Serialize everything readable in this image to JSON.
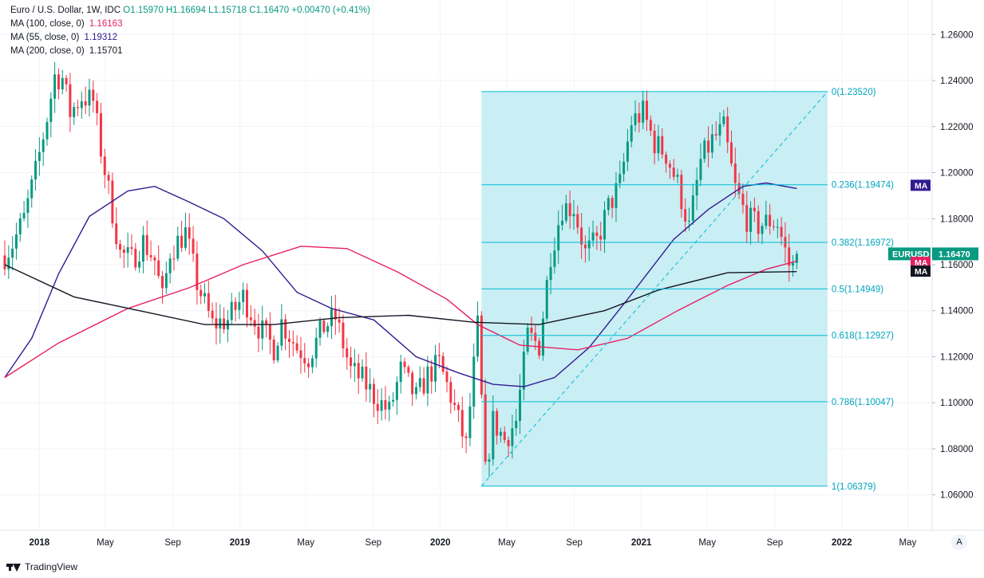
{
  "legend": {
    "title": "Euro / U.S. Dollar, 1W, IDC",
    "ohlc": {
      "o_label": "O",
      "o": "1.15970",
      "h_label": "H",
      "h": "1.16694",
      "l_label": "L",
      "l": "1.15718",
      "c_label": "C",
      "c": "1.16470",
      "change": "+0.00470 (+0.41%)"
    },
    "ma100": {
      "label": "MA (100, close, 0)",
      "value": "1.16163",
      "color": "#e91e63"
    },
    "ma55": {
      "label": "MA (55, close, 0)",
      "value": "1.19312",
      "color": "#311b92"
    },
    "ma200": {
      "label": "MA (200, close, 0)",
      "value": "1.15701",
      "color": "#131722"
    }
  },
  "footer": {
    "brand": "TradingView",
    "auto_button": "A"
  },
  "colors": {
    "up": "#089981",
    "down": "#f23645",
    "fib_line": "#00bcd4",
    "fib_fill": "#c9eef4",
    "fib_text": "#00a5bd",
    "grid": "#f0f3fa"
  },
  "chart_data": {
    "type": "candlestick",
    "symbol": "EURUSD",
    "timeframe": "1W",
    "ylim": [
      1.045,
      1.275
    ],
    "xlim": [
      "2017-10-30",
      "2022-06-13"
    ],
    "y_ticks": [
      "1.06000",
      "1.08000",
      "1.10000",
      "1.12000",
      "1.14000",
      "1.16000",
      "1.18000",
      "1.20000",
      "1.22000",
      "1.24000",
      "1.26000"
    ],
    "x_ticks": [
      {
        "label": "2018",
        "date": "2018-01-01",
        "bold": true
      },
      {
        "label": "May",
        "date": "2018-05-01",
        "bold": false
      },
      {
        "label": "Sep",
        "date": "2018-09-01",
        "bold": false
      },
      {
        "label": "2019",
        "date": "2019-01-01",
        "bold": true
      },
      {
        "label": "May",
        "date": "2019-05-01",
        "bold": false
      },
      {
        "label": "Sep",
        "date": "2019-09-01",
        "bold": false
      },
      {
        "label": "2020",
        "date": "2020-01-01",
        "bold": true
      },
      {
        "label": "May",
        "date": "2020-05-01",
        "bold": false
      },
      {
        "label": "Sep",
        "date": "2020-09-01",
        "bold": false
      },
      {
        "label": "2021",
        "date": "2021-01-01",
        "bold": true
      },
      {
        "label": "May",
        "date": "2021-05-01",
        "bold": false
      },
      {
        "label": "Sep",
        "date": "2021-09-01",
        "bold": false
      },
      {
        "label": "2022",
        "date": "2022-01-01",
        "bold": true
      },
      {
        "label": "May",
        "date": "2022-05-01",
        "bold": false
      }
    ],
    "price_path": [
      [
        "2017-10-30",
        1.164
      ],
      [
        "2017-11-13",
        1.169
      ],
      [
        "2017-12-04",
        1.18
      ],
      [
        "2017-12-25",
        1.2
      ],
      [
        "2018-01-15",
        1.224
      ],
      [
        "2018-01-29",
        1.242
      ],
      [
        "2018-02-12",
        1.241
      ],
      [
        "2018-02-26",
        1.226
      ],
      [
        "2018-03-19",
        1.233
      ],
      [
        "2018-04-09",
        1.231
      ],
      [
        "2018-04-23",
        1.21
      ],
      [
        "2018-05-07",
        1.192
      ],
      [
        "2018-05-28",
        1.165
      ],
      [
        "2018-06-18",
        1.162
      ],
      [
        "2018-07-09",
        1.17
      ],
      [
        "2018-07-30",
        1.162
      ],
      [
        "2018-08-13",
        1.145
      ],
      [
        "2018-08-27",
        1.166
      ],
      [
        "2018-09-24",
        1.174
      ],
      [
        "2018-10-15",
        1.152
      ],
      [
        "2018-11-12",
        1.134
      ],
      [
        "2018-12-10",
        1.136
      ],
      [
        "2019-01-07",
        1.146
      ],
      [
        "2019-02-04",
        1.133
      ],
      [
        "2019-03-04",
        1.124
      ],
      [
        "2019-03-18",
        1.135
      ],
      [
        "2019-04-15",
        1.124
      ],
      [
        "2019-05-06",
        1.12
      ],
      [
        "2019-06-03",
        1.133
      ],
      [
        "2019-06-24",
        1.137
      ],
      [
        "2019-07-22",
        1.114
      ],
      [
        "2019-08-12",
        1.11
      ],
      [
        "2019-09-02",
        1.103
      ],
      [
        "2019-09-30",
        1.096
      ],
      [
        "2019-10-21",
        1.114
      ],
      [
        "2019-11-18",
        1.102
      ],
      [
        "2019-12-09",
        1.112
      ],
      [
        "2019-12-30",
        1.117
      ],
      [
        "2020-01-20",
        1.103
      ],
      [
        "2020-02-17",
        1.081
      ],
      [
        "2020-03-09",
        1.133
      ],
      [
        "2020-03-23",
        1.069
      ],
      [
        "2020-04-06",
        1.092
      ],
      [
        "2020-04-27",
        1.084
      ],
      [
        "2020-05-18",
        1.092
      ],
      [
        "2020-06-08",
        1.129
      ],
      [
        "2020-06-29",
        1.125
      ],
      [
        "2020-07-20",
        1.165
      ],
      [
        "2020-08-10",
        1.185
      ],
      [
        "2020-08-31",
        1.185
      ],
      [
        "2020-09-21",
        1.165
      ],
      [
        "2020-10-12",
        1.17
      ],
      [
        "2020-11-02",
        1.185
      ],
      [
        "2020-11-23",
        1.195
      ],
      [
        "2020-12-14",
        1.222
      ],
      [
        "2021-01-04",
        1.226
      ],
      [
        "2021-01-25",
        1.213
      ],
      [
        "2021-02-15",
        1.208
      ],
      [
        "2021-03-08",
        1.195
      ],
      [
        "2021-03-29",
        1.176
      ],
      [
        "2021-04-19",
        1.205
      ],
      [
        "2021-05-10",
        1.214
      ],
      [
        "2021-05-31",
        1.219
      ],
      [
        "2021-06-21",
        1.193
      ],
      [
        "2021-07-12",
        1.18
      ],
      [
        "2021-08-02",
        1.177
      ],
      [
        "2021-08-23",
        1.179
      ],
      [
        "2021-09-06",
        1.178
      ],
      [
        "2021-09-27",
        1.16
      ],
      [
        "2021-10-04",
        1.159
      ],
      [
        "2021-10-11",
        1.1647
      ]
    ],
    "ma_series": [
      {
        "name": "MA (55, close, 0)",
        "color": "#311b92",
        "points": [
          [
            "2017-10-30",
            1.111
          ],
          [
            "2017-12-18",
            1.128
          ],
          [
            "2018-02-05",
            1.156
          ],
          [
            "2018-04-02",
            1.181
          ],
          [
            "2018-06-11",
            1.192
          ],
          [
            "2018-07-30",
            1.194
          ],
          [
            "2018-09-24",
            1.188
          ],
          [
            "2018-12-03",
            1.18
          ],
          [
            "2019-02-11",
            1.166
          ],
          [
            "2019-04-15",
            1.148
          ],
          [
            "2019-06-17",
            1.141
          ],
          [
            "2019-09-02",
            1.136
          ],
          [
            "2019-11-18",
            1.12
          ],
          [
            "2020-02-03",
            1.113
          ],
          [
            "2020-04-06",
            1.108
          ],
          [
            "2020-06-01",
            1.107
          ],
          [
            "2020-07-27",
            1.111
          ],
          [
            "2020-09-28",
            1.124
          ],
          [
            "2020-12-07",
            1.145
          ],
          [
            "2021-03-01",
            1.171
          ],
          [
            "2021-05-03",
            1.184
          ],
          [
            "2021-07-05",
            1.194
          ],
          [
            "2021-08-16",
            1.1955
          ],
          [
            "2021-10-11",
            1.1931
          ]
        ]
      },
      {
        "name": "MA (100, close, 0)",
        "color": "#e91e63",
        "points": [
          [
            "2017-10-30",
            1.111
          ],
          [
            "2018-02-05",
            1.126
          ],
          [
            "2018-06-11",
            1.141
          ],
          [
            "2018-10-01",
            1.15
          ],
          [
            "2019-01-07",
            1.16
          ],
          [
            "2019-04-22",
            1.168
          ],
          [
            "2019-07-15",
            1.167
          ],
          [
            "2019-10-14",
            1.157
          ],
          [
            "2020-01-13",
            1.145
          ],
          [
            "2020-03-09",
            1.134
          ],
          [
            "2020-05-25",
            1.125
          ],
          [
            "2020-09-07",
            1.123
          ],
          [
            "2020-12-07",
            1.128
          ],
          [
            "2021-03-08",
            1.14
          ],
          [
            "2021-06-07",
            1.151
          ],
          [
            "2021-08-16",
            1.158
          ],
          [
            "2021-10-11",
            1.1616
          ]
        ]
      },
      {
        "name": "MA (200, close, 0)",
        "color": "#131722",
        "points": [
          [
            "2017-10-30",
            1.16
          ],
          [
            "2018-03-05",
            1.146
          ],
          [
            "2018-07-02",
            1.14
          ],
          [
            "2018-10-29",
            1.134
          ],
          [
            "2019-03-04",
            1.134
          ],
          [
            "2019-07-01",
            1.137
          ],
          [
            "2019-11-04",
            1.138
          ],
          [
            "2020-03-02",
            1.135
          ],
          [
            "2020-06-29",
            1.134
          ],
          [
            "2020-10-26",
            1.14
          ],
          [
            "2021-02-01",
            1.149
          ],
          [
            "2021-06-07",
            1.1565
          ],
          [
            "2021-10-11",
            1.157
          ]
        ]
      }
    ],
    "fib_retracement": {
      "start_date": "2020-03-16",
      "end_date": "2021-12-06",
      "trend_start": [
        "2020-03-16",
        1.06379
      ],
      "trend_end": [
        "2021-12-06",
        1.2352
      ],
      "levels": [
        {
          "label": "0(1.23520)",
          "price": 1.2352
        },
        {
          "label": "0.236(1.19474)",
          "price": 1.19474
        },
        {
          "label": "0.382(1.16972)",
          "price": 1.16972
        },
        {
          "label": "0.5(1.14949)",
          "price": 1.14949
        },
        {
          "label": "0.618(1.12927)",
          "price": 1.12927
        },
        {
          "label": "0.786(1.10047)",
          "price": 1.10047
        },
        {
          "label": "1(1.06379)",
          "price": 1.06379
        }
      ]
    },
    "price_labels": [
      {
        "text": "MA",
        "price": 1.1945,
        "color": "#311b92"
      },
      {
        "text": "EURUSD",
        "value": "1.16470",
        "price": 1.1647,
        "color": "#089981"
      },
      {
        "text": "MA",
        "price": 1.161,
        "color": "#e91e63"
      },
      {
        "text": "MA",
        "price": 1.1572,
        "color": "#131722"
      }
    ]
  }
}
